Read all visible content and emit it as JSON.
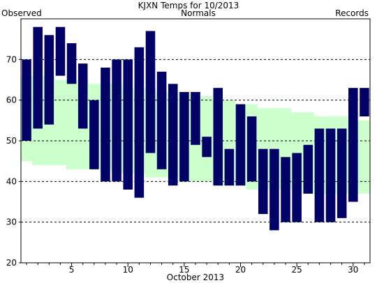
{
  "chart_data": {
    "type": "bar",
    "title": "KJXN Temps for 10/2013",
    "xlabel": "October 2013",
    "ylabel": "",
    "ylim": [
      20,
      80
    ],
    "xlim": [
      0.5,
      31.5
    ],
    "yticks": [
      20,
      30,
      40,
      50,
      60,
      70
    ],
    "xticks": [
      5,
      10,
      15,
      20,
      25,
      30
    ],
    "grid": true,
    "legend": [
      {
        "name": "Observed",
        "color": "#000066",
        "placement": "top-left"
      },
      {
        "name": "Normals",
        "color": "#006600",
        "placement": "top-center"
      },
      {
        "name": "Records",
        "color": "#cc99ff",
        "placement": "top-right"
      }
    ],
    "colors": {
      "observed": "#000066",
      "normals": "#ccffcc",
      "grid": "#000000"
    },
    "x": [
      1,
      2,
      3,
      4,
      5,
      6,
      7,
      8,
      9,
      10,
      11,
      12,
      13,
      14,
      15,
      16,
      17,
      18,
      19,
      20,
      21,
      22,
      23,
      24,
      25,
      26,
      27,
      28,
      29,
      30,
      31
    ],
    "normals": {
      "high": [
        66,
        66,
        66,
        65,
        65,
        65,
        64,
        64,
        64,
        63,
        63,
        63,
        62,
        62,
        62,
        61,
        61,
        60,
        60,
        59,
        59,
        58,
        58,
        58,
        57,
        57,
        56,
        56,
        56,
        55,
        55
      ],
      "low": [
        45,
        44,
        44,
        44,
        43,
        43,
        43,
        43,
        42,
        42,
        42,
        41,
        41,
        41,
        40,
        40,
        40,
        39,
        39,
        39,
        38,
        38,
        38,
        38,
        38,
        37,
        37,
        37,
        37,
        37,
        37
      ]
    },
    "series": [
      {
        "name": "Observed",
        "high": [
          70,
          78,
          76,
          78,
          74,
          69,
          60,
          68,
          70,
          70,
          73,
          77,
          67,
          64,
          62,
          62,
          51,
          63,
          48,
          59,
          56,
          48,
          48,
          46,
          47,
          49,
          53,
          53,
          53,
          63,
          63
        ],
        "low": [
          50,
          53,
          54,
          66,
          64,
          53,
          43,
          40,
          40,
          38,
          36,
          47,
          43,
          39,
          40,
          49,
          46,
          39,
          39,
          39,
          40,
          32,
          28,
          30,
          30,
          37,
          30,
          30,
          31,
          35,
          56
        ]
      }
    ]
  }
}
